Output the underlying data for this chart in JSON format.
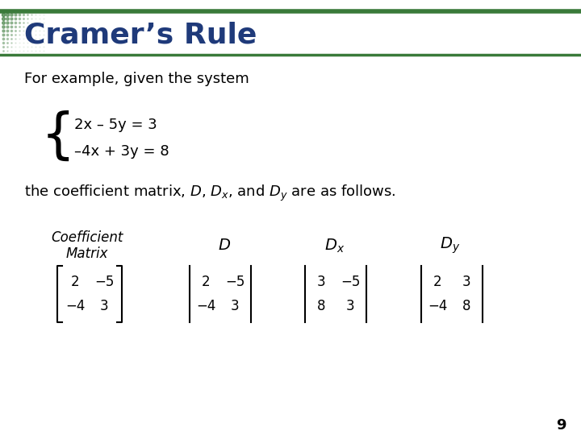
{
  "title": "Cramer’s Rule",
  "title_color": "#1F3A7A",
  "background_color": "#FFFFFF",
  "body_text_1": "For example, given the system",
  "eq1": "2x – 5y = 3",
  "eq2": "–4x + 3y = 8",
  "page_number": "9",
  "dark_green": "#3A7A3A",
  "navy": "#1F3A7A",
  "fig_w": 7.2,
  "fig_h": 5.4,
  "dpi": 100
}
